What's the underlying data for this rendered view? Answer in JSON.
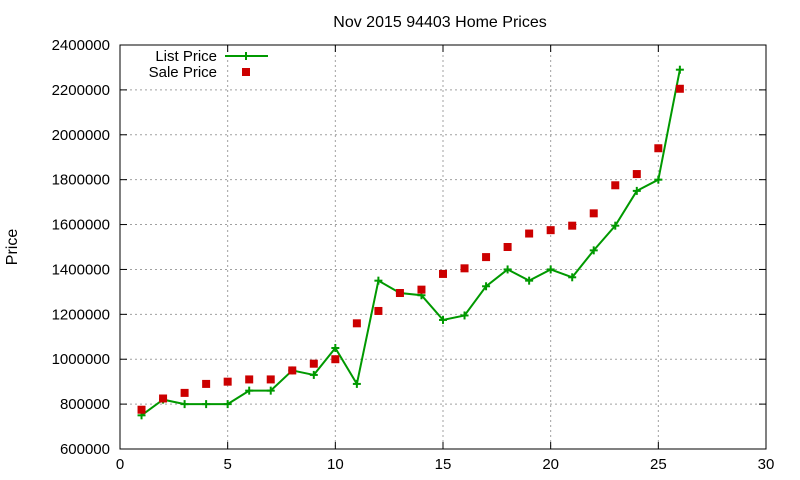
{
  "chart_data": {
    "type": "line",
    "title": "Nov 2015 94403 Home Prices",
    "xlabel": "",
    "ylabel": "Price",
    "xlim": [
      0,
      30
    ],
    "ylim": [
      600000,
      2400000
    ],
    "xticks": [
      0,
      5,
      10,
      15,
      20,
      25,
      30
    ],
    "yticks": [
      600000,
      800000,
      1000000,
      1200000,
      1400000,
      1600000,
      1800000,
      2000000,
      2200000,
      2400000
    ],
    "grid": true,
    "legend_position": "top-left",
    "series": [
      {
        "name": "List Price",
        "style": "line-cross",
        "color": "#009900",
        "x": [
          1,
          2,
          3,
          4,
          5,
          6,
          7,
          8,
          9,
          10,
          11,
          12,
          13,
          14,
          15,
          16,
          17,
          18,
          19,
          20,
          21,
          22,
          23,
          24,
          25,
          26
        ],
        "y": [
          750000,
          820000,
          800000,
          800000,
          800000,
          860000,
          860000,
          950000,
          930000,
          1050000,
          890000,
          1350000,
          1295000,
          1285000,
          1175000,
          1195000,
          1325000,
          1400000,
          1350000,
          1400000,
          1365000,
          1485000,
          1595000,
          1750000,
          1800000,
          2290000
        ]
      },
      {
        "name": "Sale Price",
        "style": "square",
        "color": "#cc0000",
        "x": [
          1,
          2,
          3,
          4,
          5,
          6,
          7,
          8,
          9,
          10,
          11,
          12,
          13,
          14,
          15,
          16,
          17,
          18,
          19,
          20,
          21,
          22,
          23,
          24,
          25,
          26
        ],
        "y": [
          775000,
          825000,
          850000,
          890000,
          900000,
          910000,
          910000,
          950000,
          980000,
          1000000,
          1160000,
          1215000,
          1295000,
          1310000,
          1380000,
          1405000,
          1455000,
          1500000,
          1560000,
          1575000,
          1595000,
          1650000,
          1775000,
          1825000,
          1940000,
          2205000
        ]
      }
    ]
  }
}
